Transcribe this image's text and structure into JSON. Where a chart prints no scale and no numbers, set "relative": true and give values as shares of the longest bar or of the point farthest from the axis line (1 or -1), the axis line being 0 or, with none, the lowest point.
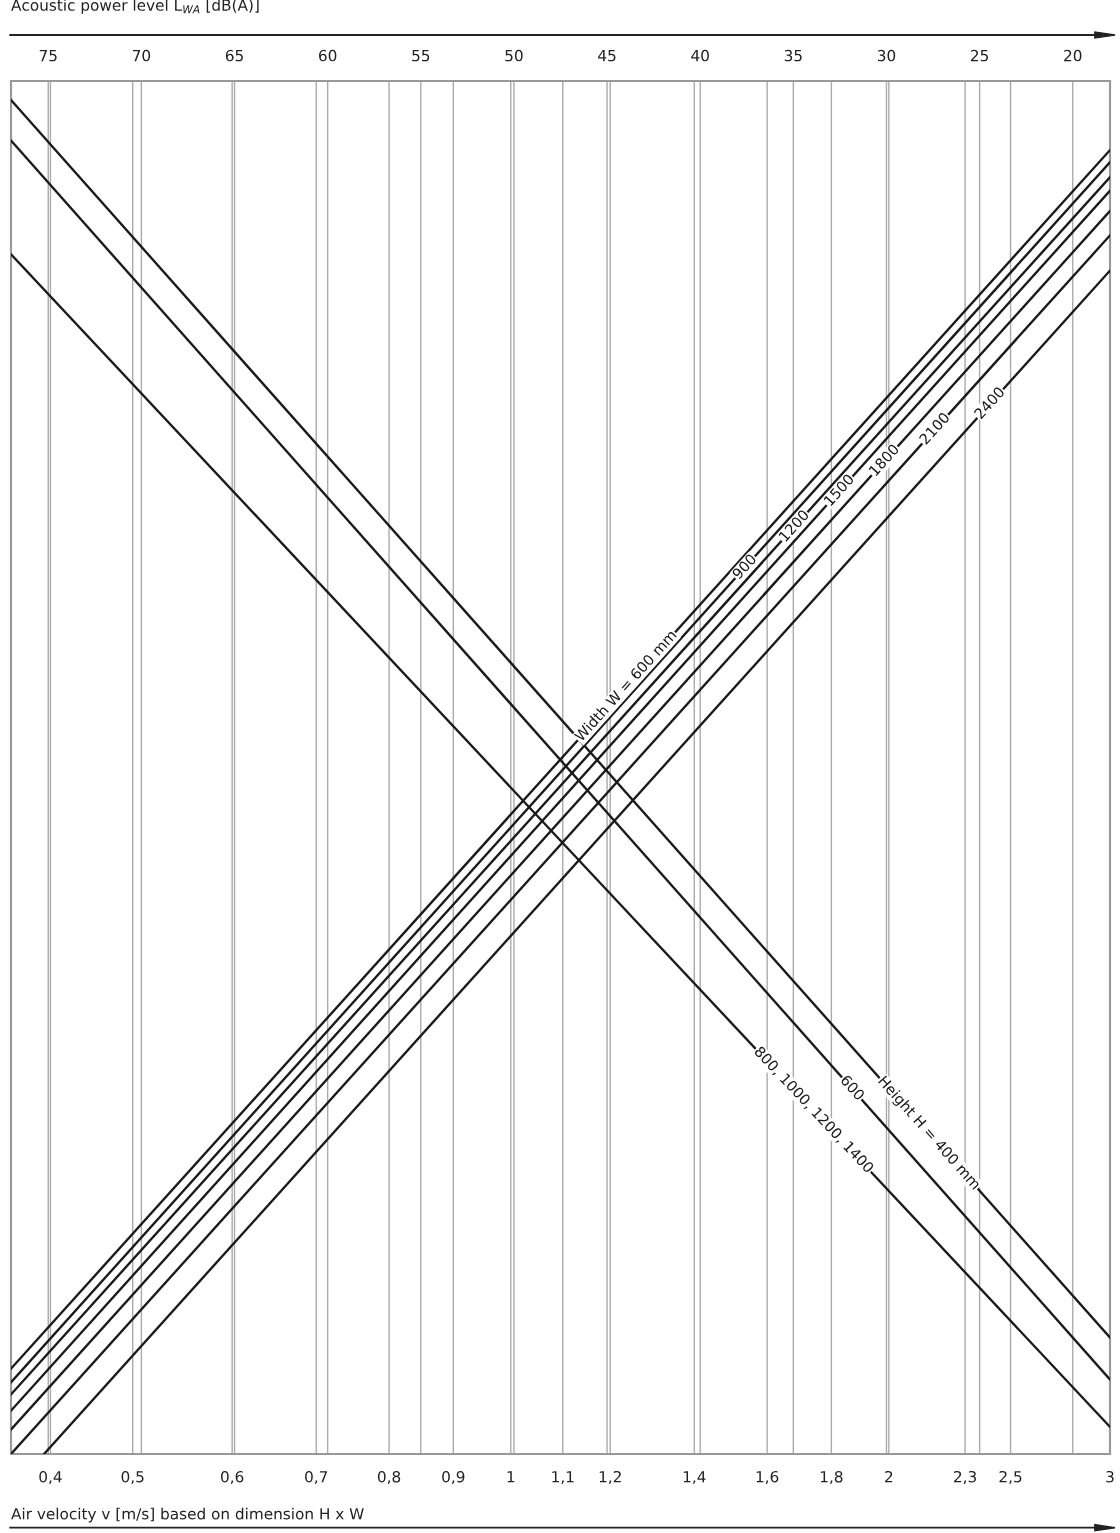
{
  "chart_data": {
    "type": "line",
    "relative": true,
    "log": "x",
    "grid": "x",
    "tick_labels": "x",
    "marker": "none",
    "line_style": "solid",
    "xlabel": "Air velocity v [m/s] based on dimension H x W",
    "x2label": "Acoustic power level L$_{WA}$ [dB(A)]",
    "xlim": [
      0.4,
      3
    ],
    "xticks": [
      {
        "value": 0.43,
        "label": "0,4"
      },
      {
        "value": 0.5,
        "label": "0,5"
      },
      {
        "value": 0.6,
        "label": "0,6"
      },
      {
        "value": 0.7,
        "label": "0,7"
      },
      {
        "value": 0.8,
        "label": "0,8"
      },
      {
        "value": 0.9,
        "label": "0,9"
      },
      1,
      {
        "value": 1.1,
        "label": "1,1"
      },
      {
        "value": 1.2,
        "label": "1,2"
      },
      {
        "value": 1.4,
        "label": "1,4"
      },
      {
        "value": 1.6,
        "label": "1,6"
      },
      {
        "value": 1.8,
        "label": "1,8"
      },
      2,
      {
        "value": 2.3,
        "label": "2,3"
      },
      {
        "value": 2.5,
        "label": "2,5"
      },
      3
    ],
    "x2lim": [
      77,
      18
    ],
    "x2ticks": [
      75,
      70,
      65,
      60,
      55,
      50,
      45,
      40,
      35,
      30,
      25,
      20
    ],
    "series": [
      {
        "name": "Height H = 400 mm",
        "color": "#1a1a1a",
        "x": [
          0.4,
          3
        ],
        "values": [
          1.0,
          0.086
        ]
      },
      {
        "name": "600",
        "color": "#1a1a1a",
        "x": [
          0.4,
          3
        ],
        "values": [
          0.97,
          0.055
        ]
      },
      {
        "name": "800, 1000, 1200, 1400",
        "color": "#1a1a1a",
        "x": [
          0.4,
          3
        ],
        "values": [
          0.886,
          0.02
        ]
      },
      {
        "name": "Width W = 600 mm",
        "color": "#1a1a1a",
        "x": [
          0.4,
          3
        ],
        "values": [
          0.063,
          0.963
        ]
      },
      {
        "name": "900",
        "color": "#1a1a1a",
        "x": [
          0.4,
          3
        ],
        "values": [
          0.053,
          0.954
        ]
      },
      {
        "name": "1200",
        "color": "#1a1a1a",
        "x": [
          0.4,
          3
        ],
        "values": [
          0.044,
          0.943
        ]
      },
      {
        "name": "1500",
        "color": "#1a1a1a",
        "x": [
          0.4,
          3
        ],
        "values": [
          0.032,
          0.933
        ]
      },
      {
        "name": "1800",
        "color": "#1a1a1a",
        "x": [
          0.4,
          3
        ],
        "values": [
          0.018,
          0.918
        ]
      },
      {
        "name": "2100",
        "color": "#1a1a1a",
        "x": [
          0.4,
          3
        ],
        "values": [
          0.0,
          0.9
        ]
      },
      {
        "name": "2400",
        "color": "#1a1a1a",
        "x": [
          0.425,
          3
        ],
        "values": [
          0.0,
          0.874
        ]
      }
    ]
  }
}
